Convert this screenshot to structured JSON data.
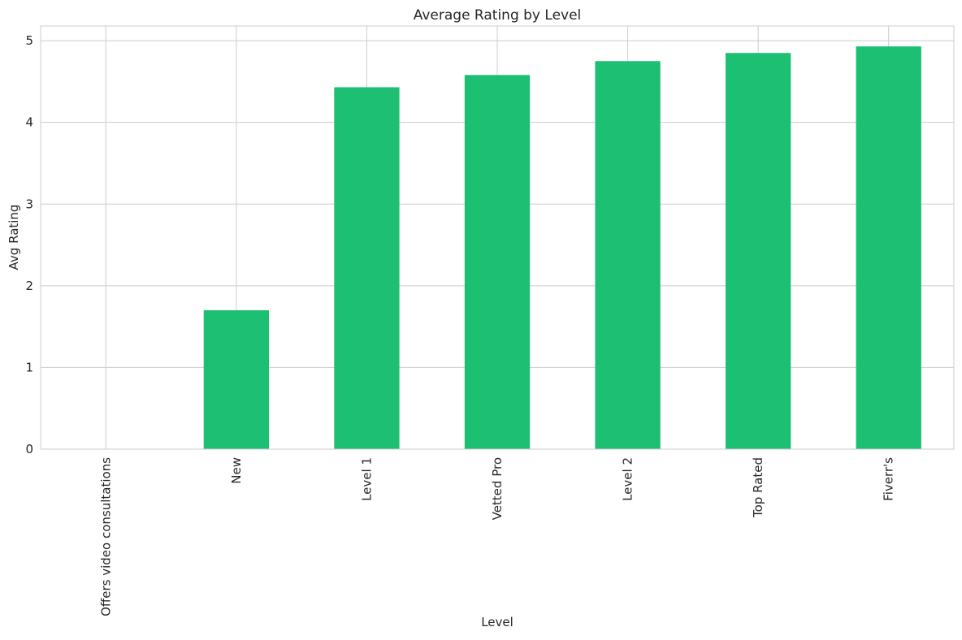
{
  "chart_data": {
    "type": "bar",
    "title": "Average Rating by Level",
    "xlabel": "Level",
    "ylabel": "Avg Rating",
    "categories": [
      "Offers video consultations",
      "New",
      "Level 1",
      "Vetted Pro",
      "Level 2",
      "Top Rated",
      "Fiverr's"
    ],
    "values": [
      0,
      1.7,
      4.43,
      4.58,
      4.75,
      4.85,
      4.93
    ],
    "ylim": [
      0,
      5.18
    ],
    "yticks": [
      0,
      1,
      2,
      3,
      4,
      5
    ],
    "grid": true,
    "bar_color": "#1dbf73",
    "grid_color": "#cccccc"
  }
}
